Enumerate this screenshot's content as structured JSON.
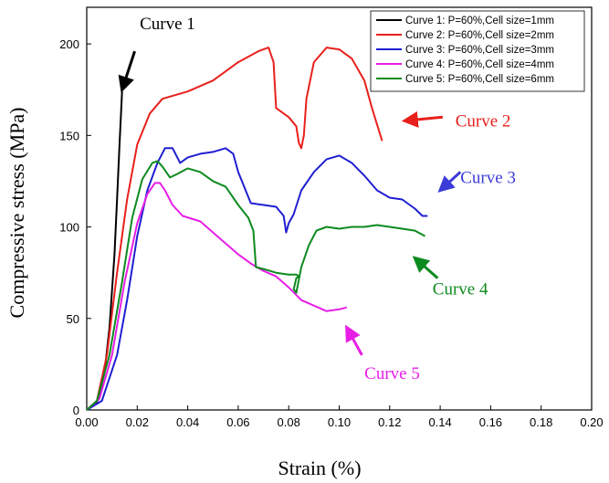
{
  "chart_data": {
    "type": "line",
    "xlabel": "Strain (%)",
    "ylabel": "Compressive stress (MPa)",
    "xlim": [
      0,
      0.2
    ],
    "ylim": [
      0,
      220
    ],
    "x_ticks": [
      "0.00",
      "0.02",
      "0.04",
      "0.06",
      "0.08",
      "0.10",
      "0.12",
      "0.14",
      "0.16",
      "0.18",
      "0.20"
    ],
    "y_ticks": [
      "0",
      "50",
      "100",
      "150",
      "200"
    ],
    "grid": false,
    "legend_position": "top-right",
    "series": [
      {
        "name": "Curve 1: P=60%,Cell size=1mm",
        "color": "#000000",
        "points": [
          [
            0.0,
            0
          ],
          [
            0.004,
            4
          ],
          [
            0.007,
            20
          ],
          [
            0.009,
            45
          ],
          [
            0.011,
            85
          ],
          [
            0.012,
            115
          ],
          [
            0.013,
            145
          ],
          [
            0.014,
            174
          ]
        ]
      },
      {
        "name": "Curve 2: P=60%,Cell size=2mm",
        "color": "#e8201c",
        "points": [
          [
            0.0,
            0
          ],
          [
            0.004,
            5
          ],
          [
            0.008,
            30
          ],
          [
            0.012,
            75
          ],
          [
            0.016,
            115
          ],
          [
            0.02,
            145
          ],
          [
            0.025,
            162
          ],
          [
            0.03,
            170
          ],
          [
            0.04,
            174
          ],
          [
            0.05,
            180
          ],
          [
            0.06,
            190
          ],
          [
            0.068,
            196
          ],
          [
            0.072,
            198
          ],
          [
            0.074,
            190
          ],
          [
            0.075,
            165
          ],
          [
            0.08,
            160
          ],
          [
            0.083,
            155
          ],
          [
            0.084,
            146
          ],
          [
            0.085,
            143
          ],
          [
            0.086,
            150
          ],
          [
            0.087,
            170
          ],
          [
            0.09,
            190
          ],
          [
            0.095,
            198
          ],
          [
            0.1,
            197
          ],
          [
            0.105,
            192
          ],
          [
            0.11,
            180
          ],
          [
            0.113,
            165
          ],
          [
            0.117,
            147
          ]
        ]
      },
      {
        "name": "Curve 3: P=60%,Cell size=3mm",
        "color": "#1f1fd1",
        "points": [
          [
            0.0,
            0
          ],
          [
            0.006,
            5
          ],
          [
            0.012,
            30
          ],
          [
            0.016,
            60
          ],
          [
            0.02,
            95
          ],
          [
            0.024,
            120
          ],
          [
            0.028,
            135
          ],
          [
            0.031,
            143
          ],
          [
            0.034,
            143
          ],
          [
            0.037,
            135
          ],
          [
            0.04,
            138
          ],
          [
            0.045,
            140
          ],
          [
            0.05,
            141
          ],
          [
            0.055,
            143
          ],
          [
            0.058,
            140
          ],
          [
            0.06,
            130
          ],
          [
            0.065,
            113
          ],
          [
            0.07,
            112
          ],
          [
            0.075,
            111
          ],
          [
            0.078,
            106
          ],
          [
            0.079,
            97
          ],
          [
            0.08,
            102
          ],
          [
            0.082,
            107
          ],
          [
            0.085,
            120
          ],
          [
            0.09,
            130
          ],
          [
            0.095,
            137
          ],
          [
            0.1,
            139
          ],
          [
            0.105,
            135
          ],
          [
            0.11,
            128
          ],
          [
            0.115,
            120
          ],
          [
            0.12,
            116
          ],
          [
            0.125,
            115
          ],
          [
            0.13,
            110
          ],
          [
            0.133,
            106
          ],
          [
            0.135,
            106
          ]
        ]
      },
      {
        "name": "Curve 4: P=60%,Cell size=4mm",
        "color": "#e61ee6",
        "points": [
          [
            0.0,
            0
          ],
          [
            0.005,
            6
          ],
          [
            0.01,
            30
          ],
          [
            0.015,
            70
          ],
          [
            0.02,
            102
          ],
          [
            0.024,
            118
          ],
          [
            0.027,
            124
          ],
          [
            0.029,
            124
          ],
          [
            0.031,
            120
          ],
          [
            0.034,
            112
          ],
          [
            0.038,
            106
          ],
          [
            0.045,
            103
          ],
          [
            0.05,
            97
          ],
          [
            0.055,
            91
          ],
          [
            0.06,
            85
          ],
          [
            0.065,
            80
          ],
          [
            0.07,
            76
          ],
          [
            0.075,
            73
          ],
          [
            0.08,
            67
          ],
          [
            0.085,
            60
          ],
          [
            0.09,
            57
          ],
          [
            0.095,
            54
          ],
          [
            0.1,
            55
          ],
          [
            0.103,
            56
          ]
        ]
      },
      {
        "name": "Curve 5: P=60%,Cell size=6mm",
        "color": "#0c8a1e",
        "points": [
          [
            0.0,
            0
          ],
          [
            0.004,
            5
          ],
          [
            0.009,
            30
          ],
          [
            0.014,
            70
          ],
          [
            0.018,
            105
          ],
          [
            0.022,
            126
          ],
          [
            0.026,
            135
          ],
          [
            0.028,
            136
          ],
          [
            0.03,
            133
          ],
          [
            0.033,
            127
          ],
          [
            0.036,
            129
          ],
          [
            0.04,
            132
          ],
          [
            0.045,
            130
          ],
          [
            0.05,
            125
          ],
          [
            0.055,
            122
          ],
          [
            0.06,
            112
          ],
          [
            0.064,
            105
          ],
          [
            0.066,
            98
          ],
          [
            0.067,
            78
          ],
          [
            0.07,
            77
          ],
          [
            0.075,
            75
          ],
          [
            0.08,
            74
          ],
          [
            0.083,
            74
          ],
          [
            0.084,
            73
          ],
          [
            0.083,
            72
          ],
          [
            0.082,
            66
          ],
          [
            0.083,
            64
          ],
          [
            0.085,
            78
          ],
          [
            0.088,
            90
          ],
          [
            0.091,
            98
          ],
          [
            0.095,
            100
          ],
          [
            0.1,
            99
          ],
          [
            0.105,
            100
          ],
          [
            0.11,
            100
          ],
          [
            0.115,
            101
          ],
          [
            0.12,
            100
          ],
          [
            0.125,
            99
          ],
          [
            0.13,
            98
          ],
          [
            0.134,
            95
          ]
        ]
      }
    ],
    "annotations": [
      {
        "id": "c1",
        "text": "Curve 1",
        "color": "#000000",
        "x": 0.021,
        "y": 208,
        "arrow_from": [
          0.019,
          196
        ],
        "arrow_to": [
          0.014,
          175
        ]
      },
      {
        "id": "c2",
        "text": "Curve 2",
        "color": "#e8201c",
        "x": 0.146,
        "y": 155,
        "arrow_from": [
          0.141,
          160
        ],
        "arrow_to": [
          0.126,
          158
        ]
      },
      {
        "id": "c3",
        "text": "Curve 3",
        "color": "#3b3bd8",
        "x": 0.148,
        "y": 124,
        "arrow_from": [
          0.148,
          130
        ],
        "arrow_to": [
          0.14,
          120
        ]
      },
      {
        "id": "c4",
        "text": "Curve 4",
        "color": "#0c8a1e",
        "x": 0.137,
        "y": 63,
        "arrow_from": [
          0.139,
          72
        ],
        "arrow_to": [
          0.13,
          83
        ]
      },
      {
        "id": "c5",
        "text": "Curve 5",
        "color": "#e61ee6",
        "x": 0.11,
        "y": 17,
        "arrow_from": [
          0.109,
          30
        ],
        "arrow_to": [
          0.103,
          45
        ]
      }
    ]
  }
}
